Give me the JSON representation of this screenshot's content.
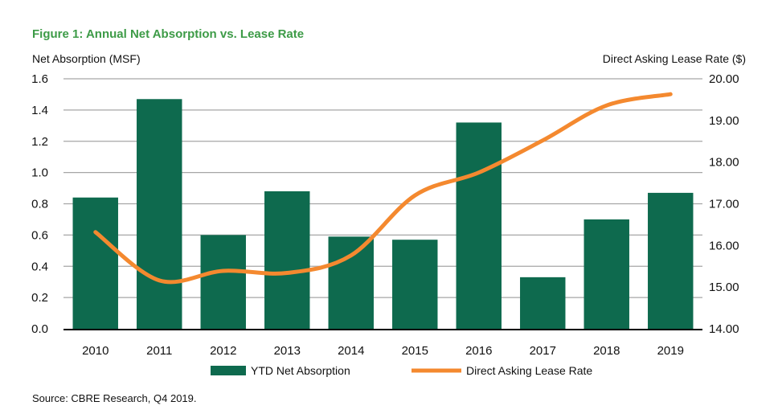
{
  "chart_data": {
    "type": "bar",
    "title": "Figure 1: Annual Net Absorption vs. Lease Rate",
    "ylabel": "Net Absorption (MSF)",
    "y2label": "Direct Asking Lease Rate ($)",
    "categories": [
      "2010",
      "2011",
      "2012",
      "2013",
      "2014",
      "2015",
      "2016",
      "2017",
      "2018",
      "2019"
    ],
    "ylim": [
      0,
      1.6
    ],
    "yticks": [
      "0.0",
      "0.2",
      "0.4",
      "0.6",
      "0.8",
      "1.0",
      "1.2",
      "1.4",
      "1.6"
    ],
    "y2lim": [
      14,
      20
    ],
    "y2ticks": [
      "14.00",
      "15.00",
      "16.00",
      "17.00",
      "18.00",
      "19.00",
      "20.00"
    ],
    "grid": true,
    "legend_position": "bottom",
    "series": [
      {
        "name": "YTD Net Absorption",
        "type": "bar",
        "axis": "left",
        "color": "#0e6a4e",
        "values": [
          0.84,
          1.47,
          0.6,
          0.88,
          0.59,
          0.57,
          1.32,
          0.33,
          0.7,
          0.87
        ]
      },
      {
        "name": "Direct Asking Lease Rate",
        "type": "line",
        "axis": "right",
        "smooth": true,
        "color": "#f4892f",
        "values": [
          16.32,
          15.16,
          15.39,
          15.34,
          15.76,
          17.2,
          17.75,
          18.52,
          19.36,
          19.63
        ]
      }
    ],
    "source": "Source: CBRE Research, Q4 2019."
  },
  "colors": {
    "title": "#3d9b47",
    "grid": "#a6a6a6",
    "axis": "#000000"
  }
}
